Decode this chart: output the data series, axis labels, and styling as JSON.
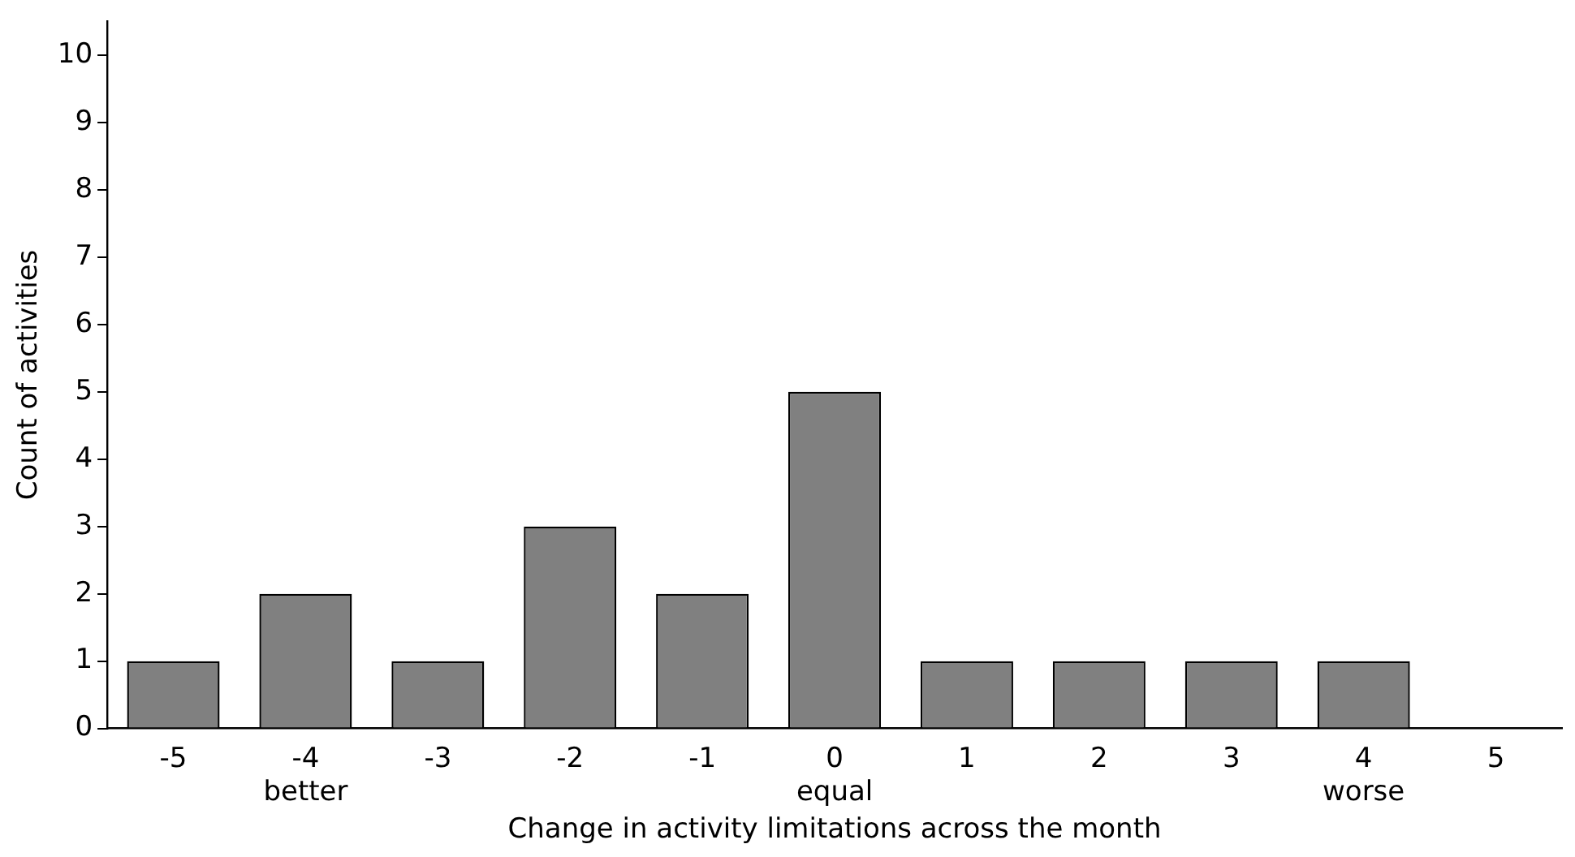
{
  "chart_data": {
    "type": "bar",
    "xlabel": "Change in activity limitations across the month",
    "ylabel": "Count of activities",
    "categories": [
      "-5",
      "-4\nbetter",
      "-3",
      "-2",
      "-1",
      "0\nequal",
      "1",
      "2",
      "3",
      "4\nworse",
      "5"
    ],
    "values": [
      1,
      2,
      1,
      3,
      2,
      5,
      1,
      1,
      1,
      1,
      0
    ],
    "color": "#808080",
    "ylim": [
      0,
      10.5
    ],
    "yticks": [
      0,
      1,
      2,
      3,
      4,
      5,
      6,
      7,
      8,
      9,
      10
    ],
    "grid": false,
    "legend": false
  }
}
